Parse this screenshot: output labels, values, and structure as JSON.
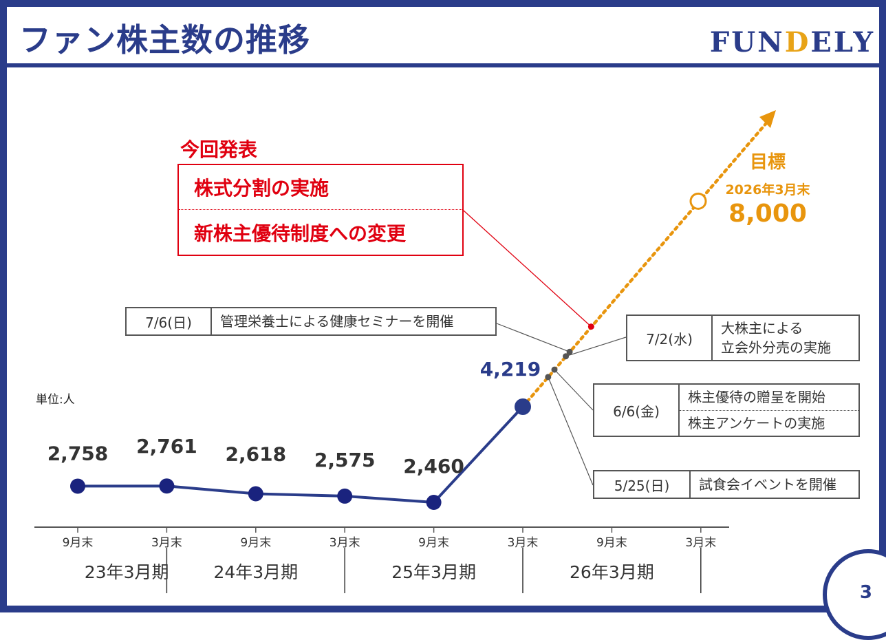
{
  "header": {
    "title": "ファン株主数の推移",
    "logo_pre": "FUN",
    "logo_d": "D",
    "logo_post": "ELY"
  },
  "page_number": "3",
  "announcement": {
    "heading": "今回発表",
    "items": [
      "株式分割の実施",
      "新株主優待制度への変更"
    ]
  },
  "events": [
    {
      "date": "7/6(日)",
      "texts": [
        "管理栄養士による健康セミナーを開催"
      ]
    },
    {
      "date": "7/2(水)",
      "texts": [
        "大株主による",
        "立会外分売の実施"
      ]
    },
    {
      "date": "6/6(金)",
      "texts": [
        "株主優待の贈呈を開始",
        "株主アンケートの実施"
      ]
    },
    {
      "date": "5/25(日)",
      "texts": [
        "試食会イベントを開催"
      ]
    }
  ],
  "target": {
    "label": "目標",
    "period": "2026年3月末",
    "value": "8,000"
  },
  "colors": {
    "brand": "#2a3c8a",
    "series": "#2a3c8a",
    "marker": "#1a237e",
    "target": "#e8950d",
    "announce": "#e00010"
  },
  "chart_data": {
    "type": "line",
    "unit_label": "単位:人",
    "x_ticks": [
      "9月末",
      "3月末",
      "9月末",
      "3月末",
      "9月末",
      "3月末",
      "9月末",
      "3月末"
    ],
    "fiscal_periods": [
      "23年3月期",
      "24年3月期",
      "25年3月期",
      "26年3月期"
    ],
    "series": [
      {
        "values": [
          2758,
          2761,
          2618,
          2575,
          2460,
          4219
        ],
        "labels": [
          "2,758",
          "2,761",
          "2,618",
          "2,575",
          "2,460",
          "4,219"
        ]
      }
    ],
    "target_point": {
      "tick_index": 6.95,
      "value": 8000
    }
  }
}
